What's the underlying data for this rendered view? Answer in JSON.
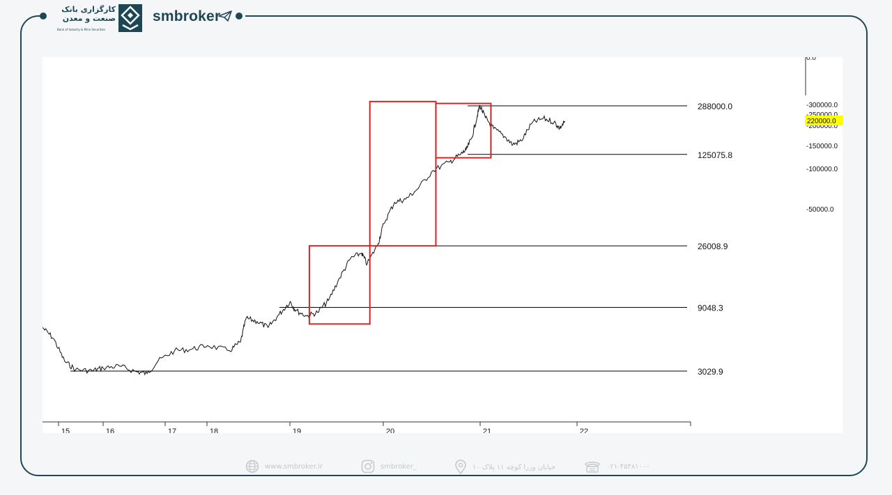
{
  "header": {
    "bank_name_line1": "کارگزاری بانک",
    "bank_name_line2": "صنعت و معدن",
    "bank_name_en": "Bank of Industry & Mine Securities",
    "brand": "smbroker"
  },
  "chart_data": {
    "type": "line",
    "title": "",
    "xlabel": "",
    "ylabel": "",
    "x_ticks": [
      "15",
      "16",
      "17",
      "18",
      "19",
      "20",
      "21",
      "22"
    ],
    "y_scale": "log",
    "series": [
      {
        "values": [
          {
            "x": 14.4,
            "y": 6400
          },
          {
            "x": 14.6,
            "y": 5300
          },
          {
            "x": 14.8,
            "y": 3600
          },
          {
            "x": 15.0,
            "y": 3100
          },
          {
            "x": 15.3,
            "y": 3050
          },
          {
            "x": 15.5,
            "y": 3200
          },
          {
            "x": 15.8,
            "y": 3300
          },
          {
            "x": 16.1,
            "y": 3000
          },
          {
            "x": 16.3,
            "y": 2900
          },
          {
            "x": 16.5,
            "y": 3600
          },
          {
            "x": 16.8,
            "y": 4300
          },
          {
            "x": 17.1,
            "y": 4400
          },
          {
            "x": 17.4,
            "y": 4700
          },
          {
            "x": 17.8,
            "y": 4300
          },
          {
            "x": 18.0,
            "y": 5000
          },
          {
            "x": 18.1,
            "y": 7500
          },
          {
            "x": 18.3,
            "y": 7100
          },
          {
            "x": 18.5,
            "y": 6400
          },
          {
            "x": 18.7,
            "y": 8000
          },
          {
            "x": 18.9,
            "y": 10000
          },
          {
            "x": 19.0,
            "y": 8600
          },
          {
            "x": 19.2,
            "y": 7800
          },
          {
            "x": 19.4,
            "y": 8300
          },
          {
            "x": 19.6,
            "y": 10200
          },
          {
            "x": 19.8,
            "y": 15000
          },
          {
            "x": 20.0,
            "y": 21000
          },
          {
            "x": 20.2,
            "y": 23000
          },
          {
            "x": 20.3,
            "y": 19000
          },
          {
            "x": 20.5,
            "y": 27000
          },
          {
            "x": 20.6,
            "y": 38000
          },
          {
            "x": 20.8,
            "y": 55000
          },
          {
            "x": 21.0,
            "y": 58000
          },
          {
            "x": 21.2,
            "y": 68000
          },
          {
            "x": 21.5,
            "y": 95000
          },
          {
            "x": 21.8,
            "y": 110000
          },
          {
            "x": 22.0,
            "y": 125000
          },
          {
            "x": 22.1,
            "y": 135000
          },
          {
            "x": 22.2,
            "y": 165000
          },
          {
            "x": 22.3,
            "y": 240000
          },
          {
            "x": 22.35,
            "y": 290000
          },
          {
            "x": 22.45,
            "y": 235000
          },
          {
            "x": 22.6,
            "y": 195000
          },
          {
            "x": 22.8,
            "y": 170000
          },
          {
            "x": 22.95,
            "y": 148000
          },
          {
            "x": 23.1,
            "y": 158000
          },
          {
            "x": 23.3,
            "y": 215000
          },
          {
            "x": 23.5,
            "y": 232000
          },
          {
            "x": 23.7,
            "y": 218000
          },
          {
            "x": 23.8,
            "y": 196000
          },
          {
            "x": 23.9,
            "y": 220000
          }
        ]
      }
    ],
    "hlines": [
      {
        "value": 288000,
        "label": "288000.0"
      },
      {
        "value": 125075.8,
        "label": "125075.8"
      },
      {
        "value": 26008.9,
        "label": "26008.9"
      },
      {
        "value": 9048.3,
        "label": "9048.3"
      },
      {
        "value": 3029.9,
        "label": "3029.9"
      }
    ],
    "boxes": [
      {
        "x0": 19.0,
        "x1": 20.1,
        "y0": 6800,
        "y1": 26008.9,
        "color": "#d62323"
      },
      {
        "x0": 20.1,
        "x1": 21.3,
        "y0": 26008.9,
        "y1": 310000,
        "color": "#d62323"
      },
      {
        "x0": 21.3,
        "x1": 22.3,
        "y0": 118000,
        "y1": 300000,
        "color": "#d62323"
      }
    ],
    "right_axis": {
      "ticks": [
        "0.0",
        "300000.0",
        "250000.0",
        "200000.0",
        "150000.0",
        "100000.0",
        "50000.0"
      ],
      "highlight": {
        "label": "220000.0",
        "color": "#ffff00"
      }
    },
    "colors": {
      "line": "#111111",
      "box": "#d62323",
      "hline": "#000000"
    }
  },
  "footer": {
    "website": "www.smbroker.ir",
    "instagram": "smbroker_",
    "address": "خیابان وزرا کوچه ۱۱ پلاک ۱۰",
    "phone": "۰۲۱-۴۵۴۸۱۰۰۰"
  }
}
